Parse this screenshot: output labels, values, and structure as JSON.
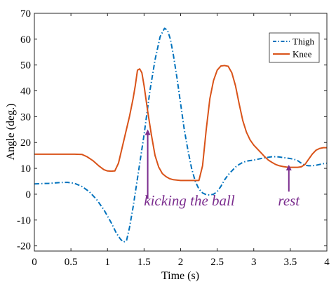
{
  "chart_data": {
    "type": "line",
    "title": "",
    "xlabel": "Time (s)",
    "ylabel": "Angle (deg.)",
    "xlim": [
      0,
      4
    ],
    "ylim": [
      -22,
      70
    ],
    "xticks": [
      0,
      0.5,
      1,
      1.5,
      2,
      2.5,
      3,
      3.5,
      4
    ],
    "yticks": [
      -20,
      -10,
      0,
      10,
      20,
      30,
      40,
      50,
      60,
      70
    ],
    "xtick_labels": [
      "0",
      "0.5",
      "1",
      "1.5",
      "2",
      "2.5",
      "3",
      "3.5",
      "4"
    ],
    "ytick_labels": [
      "-20",
      "-10",
      "0",
      "10",
      "20",
      "30",
      "40",
      "50",
      "60",
      "70"
    ],
    "grid": false,
    "legend_position": "top-right",
    "series": [
      {
        "name": "Thigh",
        "color": "#0072BD",
        "style": "dash-dot",
        "x": [
          0,
          0.2,
          0.35,
          0.45,
          0.55,
          0.65,
          0.75,
          0.85,
          0.95,
          1.05,
          1.12,
          1.18,
          1.22,
          1.26,
          1.3,
          1.35,
          1.42,
          1.5,
          1.58,
          1.65,
          1.72,
          1.78,
          1.82,
          1.86,
          1.9,
          1.95,
          2.0,
          2.05,
          2.1,
          2.15,
          2.2,
          2.25,
          2.3,
          2.35,
          2.4,
          2.45,
          2.5,
          2.55,
          2.6,
          2.65,
          2.7,
          2.75,
          2.8,
          2.85,
          2.9,
          2.95,
          3.0,
          3.05,
          3.1,
          3.15,
          3.2,
          3.25,
          3.3,
          3.35,
          3.4,
          3.45,
          3.5,
          3.55,
          3.6,
          3.65,
          3.7,
          3.75,
          3.8,
          3.85,
          3.9,
          3.95,
          4.0
        ],
        "y": [
          4,
          4.2,
          4.5,
          4.6,
          4.2,
          3,
          1,
          -2,
          -6,
          -11,
          -15,
          -17.5,
          -18.5,
          -18,
          -13,
          -5,
          8,
          23,
          40,
          52,
          61,
          64.2,
          63.5,
          60,
          54,
          45,
          35,
          25,
          17,
          10,
          5,
          2,
          0.5,
          -0.2,
          -0.3,
          0,
          1,
          3,
          5.5,
          7.5,
          9,
          10.5,
          11.5,
          12.3,
          12.8,
          13,
          13.2,
          13.5,
          13.8,
          14.1,
          14.3,
          14.5,
          14.5,
          14.4,
          14.2,
          14,
          13.8,
          13.5,
          13,
          12,
          11.2,
          11,
          11,
          11.2,
          11.5,
          11.8,
          12
        ]
      },
      {
        "name": "Knee",
        "color": "#D95319",
        "style": "solid",
        "x": [
          0,
          0.3,
          0.55,
          0.65,
          0.72,
          0.8,
          0.88,
          0.95,
          1.0,
          1.05,
          1.1,
          1.15,
          1.2,
          1.25,
          1.3,
          1.35,
          1.38,
          1.41,
          1.44,
          1.47,
          1.5,
          1.55,
          1.6,
          1.65,
          1.7,
          1.75,
          1.8,
          1.85,
          1.9,
          2.0,
          2.1,
          2.2,
          2.25,
          2.3,
          2.35,
          2.4,
          2.45,
          2.5,
          2.55,
          2.6,
          2.65,
          2.7,
          2.75,
          2.8,
          2.85,
          2.9,
          2.95,
          3.0,
          3.05,
          3.1,
          3.15,
          3.2,
          3.25,
          3.3,
          3.35,
          3.4,
          3.45,
          3.5,
          3.55,
          3.6,
          3.65,
          3.7,
          3.75,
          3.8,
          3.85,
          3.9,
          3.95,
          4.0
        ],
        "y": [
          15.5,
          15.5,
          15.5,
          15.4,
          14.5,
          13,
          11,
          9.5,
          9,
          8.9,
          9,
          12,
          18,
          24,
          30,
          37,
          42,
          48,
          48.5,
          47,
          42,
          32,
          23,
          15,
          10.5,
          8,
          6.8,
          6,
          5.6,
          5.3,
          5.3,
          5.3,
          5.3,
          11,
          25,
          37,
          44,
          48,
          49.6,
          49.8,
          49.5,
          47,
          42,
          35,
          28.5,
          24,
          21,
          19,
          17.5,
          16,
          14.5,
          13.2,
          12.3,
          11.5,
          11,
          10.7,
          10.5,
          10.4,
          10.4,
          10.4,
          10.6,
          11.5,
          13.5,
          15.5,
          17,
          17.7,
          18,
          18
        ]
      }
    ],
    "annotations": [
      {
        "text": "kicking the ball",
        "color": "#7B2D8E",
        "arrow_x": 1.55,
        "arrow_y_from": -1.8,
        "arrow_y_to": 24,
        "text_x": 2.12,
        "text_y": -4.4
      },
      {
        "text": "rest",
        "color": "#7B2D8E",
        "arrow_x": 3.48,
        "arrow_y_from": 1,
        "arrow_y_to": 10.3,
        "text_x": 3.48,
        "text_y": -4.4
      }
    ]
  }
}
